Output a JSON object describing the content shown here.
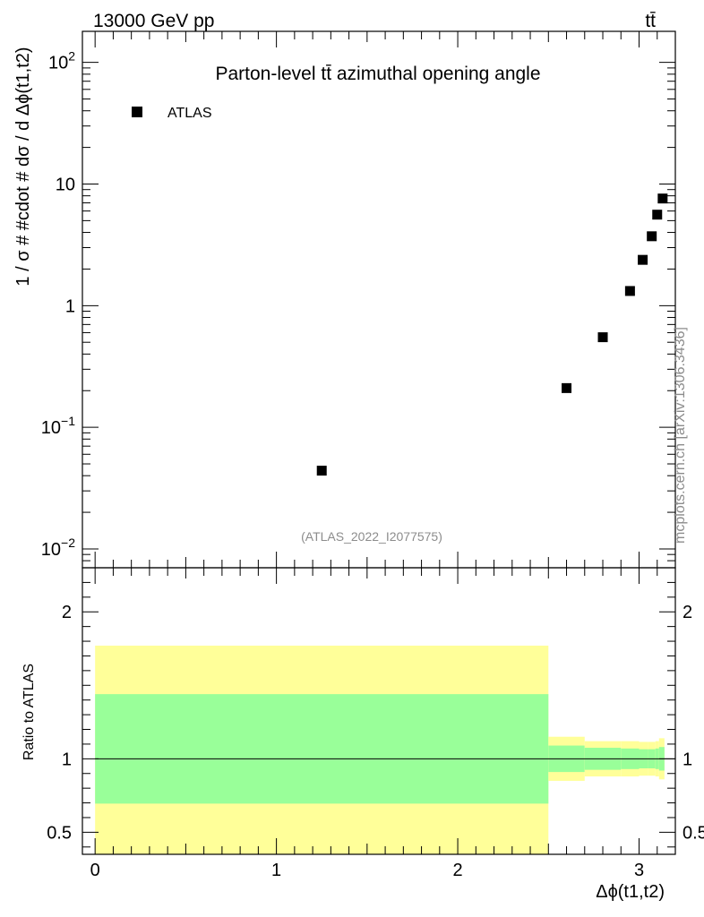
{
  "header": {
    "energy_label": "13000 GeV pp",
    "process_label": "tt̄"
  },
  "side_label": "mcplots.cern.ch [arXiv:1306.3436]",
  "colors": {
    "inner_band": "#99ff99",
    "outer_band": "#ffff99",
    "marker": "#000000",
    "gray_text": "#8c8c8c"
  },
  "chart_data": [
    {
      "type": "scatter",
      "title": "Parton-level tt̄ azimuthal opening angle",
      "ylabel": "1 / σ # #cdot # dσ / d Δϕ(t1,t2)",
      "yscale": "log",
      "ylim": [
        0.007,
        180
      ],
      "xlim": [
        -0.07,
        3.2
      ],
      "legend": {
        "position": "top-left",
        "entries": [
          "ATLAS"
        ]
      },
      "annotation": "(ATLAS_2022_I2077575)",
      "yticks": [
        {
          "value": 0.01,
          "base": "10",
          "exp": "−2"
        },
        {
          "value": 0.1,
          "base": "10",
          "exp": "−1"
        },
        {
          "value": 1,
          "label": "1"
        },
        {
          "value": 10,
          "label": "10"
        },
        {
          "value": 100,
          "base": "10",
          "exp": "2"
        }
      ],
      "series": [
        {
          "name": "ATLAS",
          "points": [
            {
              "x": 1.25,
              "y": 0.044
            },
            {
              "x": 2.6,
              "y": 0.21
            },
            {
              "x": 2.8,
              "y": 0.55
            },
            {
              "x": 2.95,
              "y": 1.32
            },
            {
              "x": 3.02,
              "y": 2.38
            },
            {
              "x": 3.07,
              "y": 3.72
            },
            {
              "x": 3.1,
              "y": 5.6
            },
            {
              "x": 3.13,
              "y": 7.6
            }
          ]
        }
      ]
    },
    {
      "type": "area",
      "ylabel": "Ratio to ATLAS",
      "xlabel": "Δϕ(t1,t2)",
      "ylim": [
        0.35,
        2.3
      ],
      "xlim": [
        -0.07,
        3.2
      ],
      "xticks": [
        "0",
        "1",
        "2",
        "3"
      ],
      "yticks": [
        "0.5",
        "1",
        "2"
      ],
      "reference_line": 1,
      "bands": [
        {
          "x0": 0,
          "x1": 2.5,
          "inner": [
            0.695,
            1.44
          ],
          "outer": [
            0.3,
            1.77
          ]
        },
        {
          "x0": 2.5,
          "x1": 2.7,
          "inner": [
            0.91,
            1.09
          ],
          "outer": [
            0.85,
            1.15
          ]
        },
        {
          "x0": 2.7,
          "x1": 2.9,
          "inner": [
            0.925,
            1.075
          ],
          "outer": [
            0.88,
            1.12
          ]
        },
        {
          "x0": 2.9,
          "x1": 3.0,
          "inner": [
            0.93,
            1.07
          ],
          "outer": [
            0.88,
            1.12
          ]
        },
        {
          "x0": 3.0,
          "x1": 3.05,
          "inner": [
            0.935,
            1.065
          ],
          "outer": [
            0.885,
            1.115
          ]
        },
        {
          "x0": 3.05,
          "x1": 3.09,
          "inner": [
            0.935,
            1.065
          ],
          "outer": [
            0.885,
            1.115
          ]
        },
        {
          "x0": 3.09,
          "x1": 3.11,
          "inner": [
            0.93,
            1.07
          ],
          "outer": [
            0.88,
            1.12
          ]
        },
        {
          "x0": 3.11,
          "x1": 3.14,
          "inner": [
            0.92,
            1.08
          ],
          "outer": [
            0.86,
            1.14
          ]
        }
      ]
    }
  ]
}
